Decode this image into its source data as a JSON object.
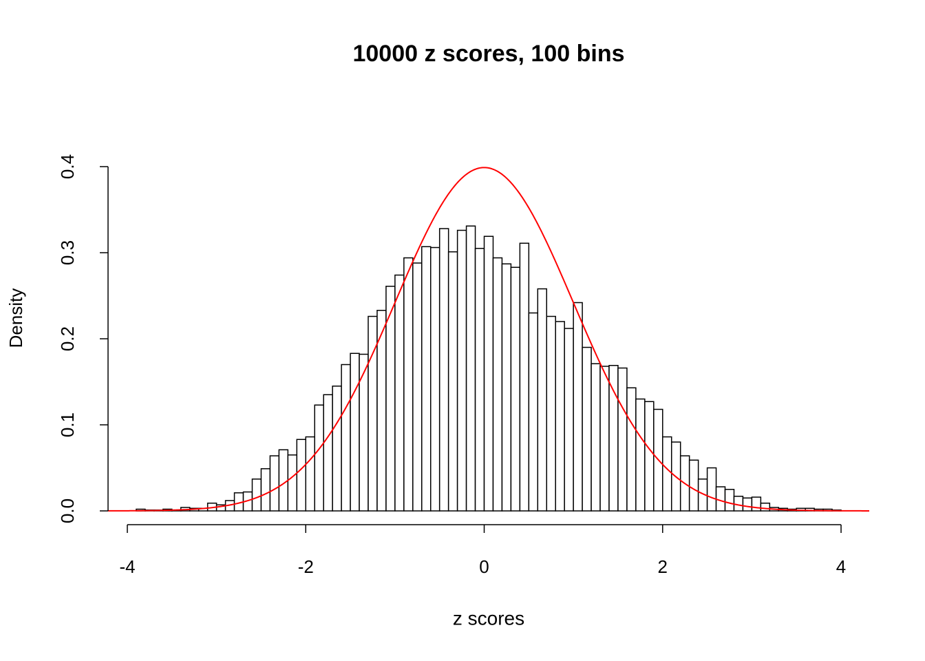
{
  "chart_data": {
    "type": "histogram",
    "title": "10000 z scores, 100 bins",
    "x_label": "z scores",
    "y_label": "Density",
    "bins": [
      -3.9,
      -3.8,
      -3.7,
      -3.6,
      -3.5,
      -3.4,
      -3.3,
      -3.2,
      -3.1,
      -3,
      -2.9,
      -2.8,
      -2.7,
      -2.6,
      -2.5,
      -2.4,
      -2.3,
      -2.2,
      -2.1,
      -2,
      -1.9,
      -1.8,
      -1.7,
      -1.6,
      -1.5,
      -1.4,
      -1.3,
      -1.2,
      -1.1,
      -1,
      -0.9,
      -0.8,
      -0.7,
      -0.6,
      -0.5,
      -0.4,
      -0.3,
      -0.2,
      -0.1,
      0,
      0.1,
      0.2,
      0.3,
      0.4,
      0.5,
      0.6,
      0.7,
      0.8,
      0.9,
      1,
      1.1,
      1.2,
      1.3,
      1.4,
      1.5,
      1.6,
      1.7,
      1.8,
      1.9,
      2,
      2.1,
      2.2,
      2.3,
      2.4,
      2.5,
      2.6,
      2.7,
      2.8,
      2.9,
      3,
      3.1,
      3.2,
      3.3,
      3.4,
      3.5,
      3.6,
      3.7,
      3.8,
      3.9,
      4
    ],
    "values": [
      0.002,
      0.001,
      0.001,
      0.002,
      0.001,
      0.004,
      0.003,
      0.003,
      0.009,
      0.007,
      0.012,
      0.021,
      0.022,
      0.037,
      0.049,
      0.064,
      0.071,
      0.065,
      0.083,
      0.086,
      0.123,
      0.135,
      0.145,
      0.17,
      0.183,
      0.182,
      0.226,
      0.233,
      0.261,
      0.274,
      0.294,
      0.288,
      0.307,
      0.306,
      0.328,
      0.301,
      0.326,
      0.331,
      0.305,
      0.319,
      0.294,
      0.287,
      0.283,
      0.311,
      0.23,
      0.258,
      0.226,
      0.22,
      0.212,
      0.242,
      0.19,
      0.171,
      0.168,
      0.169,
      0.166,
      0.143,
      0.13,
      0.127,
      0.118,
      0.086,
      0.08,
      0.064,
      0.059,
      0.037,
      0.05,
      0.028,
      0.025,
      0.017,
      0.015,
      0.016,
      0.009,
      0.004,
      0.003,
      0.002,
      0.003,
      0.003,
      0.002,
      0.002,
      0.001,
      0.001
    ],
    "color": "#ffffff",
    "edge_color": "#000000",
    "curve": {
      "type": "normal",
      "mean": 0,
      "sd": 1,
      "color": "#ff0000"
    },
    "xlim": [
      -4.216,
      4.316
    ],
    "xticks": [
      -4,
      -2,
      0,
      2,
      4
    ],
    "ylim": [
      -0.016,
      0.416
    ],
    "yticks": [
      {
        "value": 0,
        "label": "0.0"
      },
      0.1,
      0.2,
      0.3,
      0.4
    ]
  }
}
